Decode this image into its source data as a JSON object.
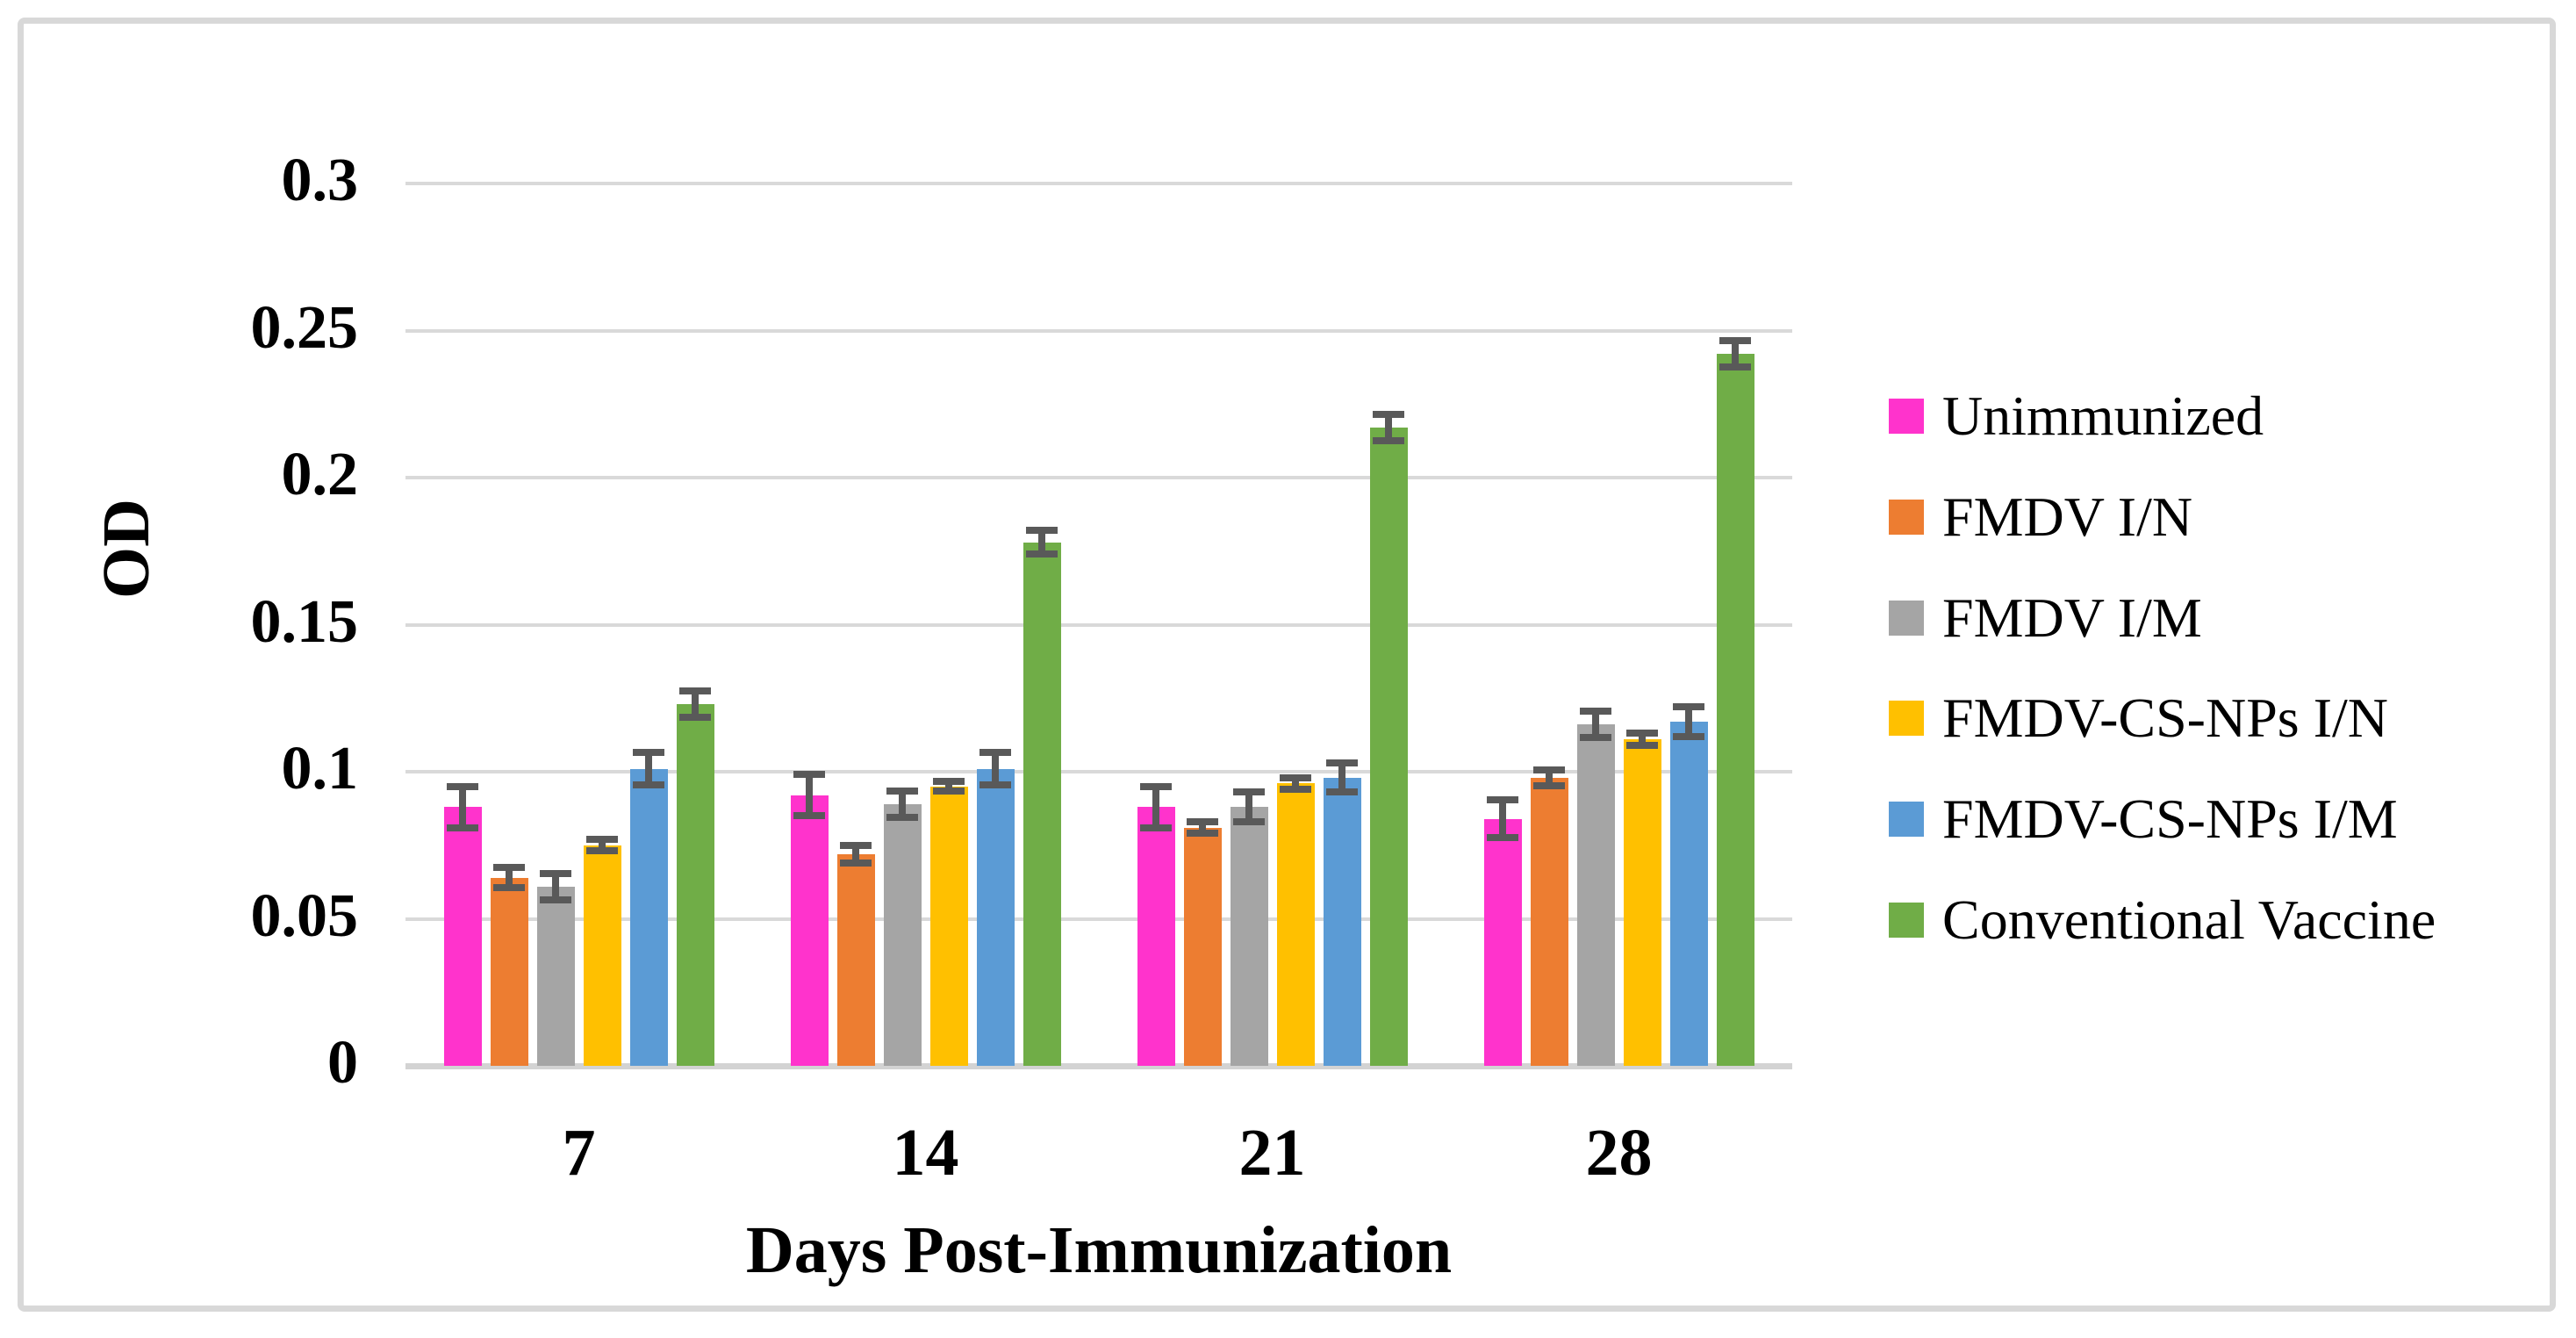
{
  "figure": {
    "background": "#ffffff",
    "border_color": "#d8d8d8"
  },
  "chart_data": {
    "type": "bar",
    "title": "",
    "xlabel": "Days Post-Immunization",
    "ylabel": "OD",
    "categories": [
      "7",
      "14",
      "21",
      "28"
    ],
    "series": [
      {
        "name": "Unimmunized",
        "color": "#FF33CC",
        "values": [
          0.088,
          0.092,
          0.088,
          0.084
        ],
        "errors": [
          0.007,
          0.007,
          0.007,
          0.0065
        ]
      },
      {
        "name": "FMDV I/N",
        "color": "#ED7D31",
        "values": [
          0.064,
          0.072,
          0.081,
          0.098
        ],
        "errors": [
          0.0035,
          0.003,
          0.002,
          0.0027
        ]
      },
      {
        "name": "FMDV I/M",
        "color": "#A5A5A5",
        "values": [
          0.061,
          0.089,
          0.088,
          0.116
        ],
        "errors": [
          0.0045,
          0.0045,
          0.005,
          0.0045
        ]
      },
      {
        "name": "FMDV-CS-NPs I/N",
        "color": "#FFC000",
        "values": [
          0.075,
          0.095,
          0.096,
          0.111
        ],
        "errors": [
          0.002,
          0.0016,
          0.002,
          0.002
        ]
      },
      {
        "name": "FMDV-CS-NPs I/M",
        "color": "#5B9BD5",
        "values": [
          0.101,
          0.101,
          0.098,
          0.117
        ],
        "errors": [
          0.0055,
          0.0055,
          0.005,
          0.005
        ]
      },
      {
        "name": "Conventional Vaccine",
        "color": "#70AD47",
        "values": [
          0.123,
          0.178,
          0.217,
          0.242
        ],
        "errors": [
          0.0045,
          0.004,
          0.0045,
          0.0045
        ]
      }
    ],
    "ylim": [
      0,
      0.3
    ],
    "ytick_step": 0.05,
    "ytick_labels": [
      "0",
      "0.05",
      "0.1",
      "0.15",
      "0.2",
      "0.25",
      "0.3"
    ],
    "grid": true,
    "legend_position": "right",
    "error_bars": true,
    "error_bar_color": "#595959",
    "gridline_color": "#D9D9D9",
    "axis_line_color": "#D3D3D3"
  }
}
